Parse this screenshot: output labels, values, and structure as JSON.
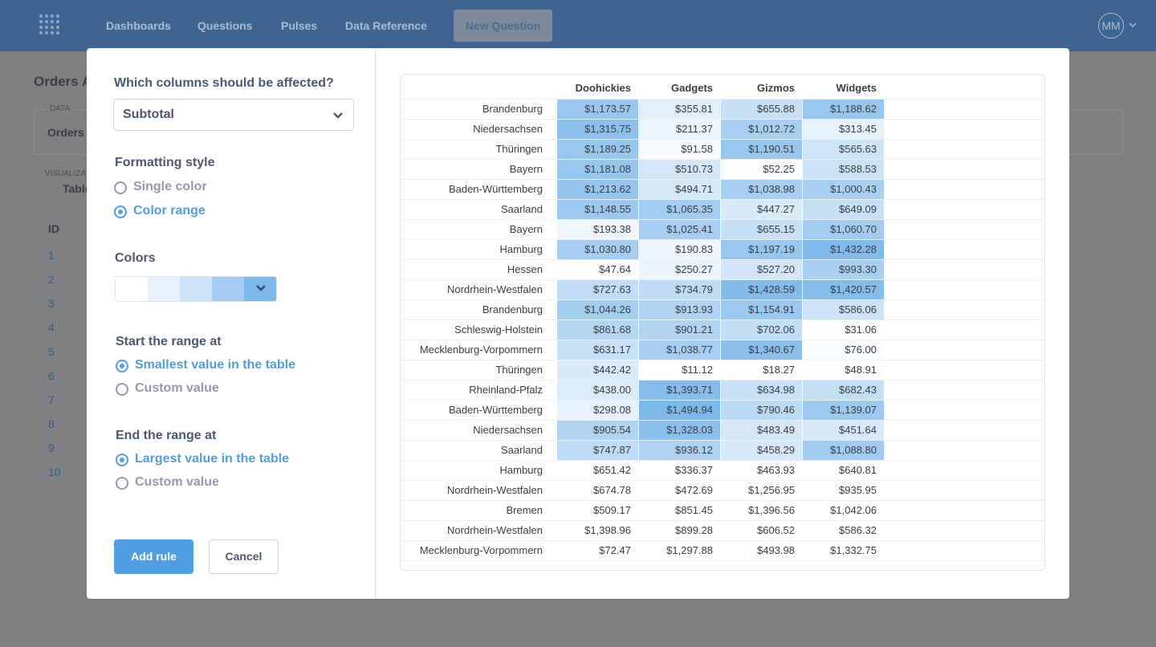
{
  "nav": {
    "items": [
      "Dashboards",
      "Questions",
      "Pulses",
      "Data Reference"
    ],
    "new_question": "New Question",
    "avatar": "MM"
  },
  "background": {
    "title": "Orders A",
    "data_label": "DATA",
    "data_value": "Orders",
    "viz_label": "VISUALIZATION",
    "viz_value": "Table",
    "id_header": "ID",
    "ids": [
      "1",
      "2",
      "3",
      "4",
      "5",
      "6",
      "7",
      "8",
      "9",
      "10"
    ]
  },
  "modal": {
    "columns_question": "Which columns should be affected?",
    "column_select": "Subtotal",
    "formatting_style": {
      "label": "Formatting style",
      "options": [
        "Single color",
        "Color range"
      ],
      "selected": 1
    },
    "colors": {
      "label": "Colors",
      "swatches": [
        "#ffffff",
        "#e6f1fb",
        "#cde3f7",
        "#a3ccf0",
        "#7db8ea"
      ]
    },
    "start": {
      "label": "Start the range at",
      "options": [
        "Smallest value in the table",
        "Custom value"
      ],
      "selected": 0
    },
    "end": {
      "label": "End the range at",
      "options": [
        "Largest value in the table",
        "Custom value"
      ],
      "selected": 0
    },
    "add_rule": "Add rule",
    "cancel": "Cancel"
  },
  "table": {
    "columns": [
      "Doohickies",
      "Gadgets",
      "Gizmos",
      "Widgets"
    ],
    "rows": [
      [
        "Brandenburg",
        "$1,173.57",
        "$355.81",
        "$655.88",
        "$1,188.62"
      ],
      [
        "Niedersachsen",
        "$1,315.75",
        "$211.37",
        "$1,012.72",
        "$313.45"
      ],
      [
        "Thüringen",
        "$1,189.25",
        "$91.58",
        "$1,190.51",
        "$565.63"
      ],
      [
        "Bayern",
        "$1,181.08",
        "$510.73",
        "$52.25",
        "$588.53"
      ],
      [
        "Baden-Württemberg",
        "$1,213.62",
        "$494.71",
        "$1,038.98",
        "$1,000.43"
      ],
      [
        "Saarland",
        "$1,148.55",
        "$1,065.35",
        "$447.27",
        "$649.09"
      ],
      [
        "Bayern",
        "$193.38",
        "$1,025.41",
        "$655.15",
        "$1,060.70"
      ],
      [
        "Hamburg",
        "$1,030.80",
        "$190.83",
        "$1,197.19",
        "$1,432.28"
      ],
      [
        "Hessen",
        "$47.64",
        "$250.27",
        "$527.20",
        "$993.30"
      ],
      [
        "Nordrhein-Westfalen",
        "$727.63",
        "$734.79",
        "$1,428.59",
        "$1,420.57"
      ],
      [
        "Brandenburg",
        "$1,044.26",
        "$913.93",
        "$1,154.91",
        "$586.06"
      ],
      [
        "Schleswig-Holstein",
        "$861.68",
        "$901.21",
        "$702.06",
        "$31.06"
      ],
      [
        "Mecklenburg-Vorpommern",
        "$631.17",
        "$1,038.77",
        "$1,340.67",
        "$76.00"
      ],
      [
        "Thüringen",
        "$442.42",
        "$11.12",
        "$18.27",
        "$48.91"
      ],
      [
        "Rheinland-Pfalz",
        "$438.00",
        "$1,393.71",
        "$634.98",
        "$682.43"
      ],
      [
        "Baden-Württemberg",
        "$298.08",
        "$1,494.94",
        "$790.46",
        "$1,139.07"
      ],
      [
        "Niedersachsen",
        "$905.54",
        "$1,328.03",
        "$483.49",
        "$451.64"
      ],
      [
        "Saarland",
        "$747.87",
        "$936.12",
        "$458.29",
        "$1,088.80"
      ],
      [
        "Hamburg",
        "$651.42",
        "$336.37",
        "$463.93",
        "$640.81"
      ],
      [
        "Nordrhein-Westfalen",
        "$674.78",
        "$472.69",
        "$1,256.95",
        "$935.95"
      ],
      [
        "Bremen",
        "$509.17",
        "$851.45",
        "$1,396.56",
        "$1,042.06"
      ],
      [
        "Nordrhein-Westfalen",
        "$1,398.96",
        "$899.28",
        "$606.52",
        "$586.32"
      ],
      [
        "Mecklenburg-Vorpommern",
        "$72.47",
        "$1,297.88",
        "$493.98",
        "$1,332.75"
      ]
    ]
  }
}
